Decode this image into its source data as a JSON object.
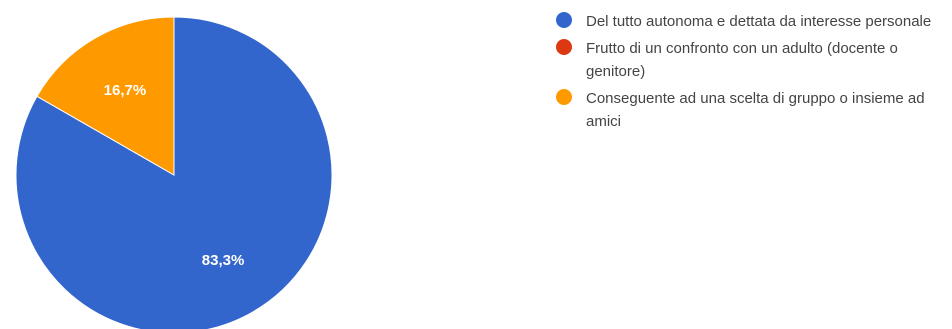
{
  "chart_data": {
    "type": "pie",
    "title": "",
    "slices": [
      {
        "label": "Del tutto autonoma e dettata da interesse personale",
        "value": 83.3,
        "value_label": "83,3%",
        "color": "#3366cc"
      },
      {
        "label": "Frutto di un confronto con un adulto (docente o genitore)",
        "value": 0,
        "value_label": "",
        "color": "#dc3912"
      },
      {
        "label": "Conseguente ad una scelta di gruppo o insieme ad amici",
        "value": 16.7,
        "value_label": "16,7%",
        "color": "#ff9900"
      }
    ],
    "legend_position": "right",
    "start": "top",
    "direction": "clockwise"
  }
}
